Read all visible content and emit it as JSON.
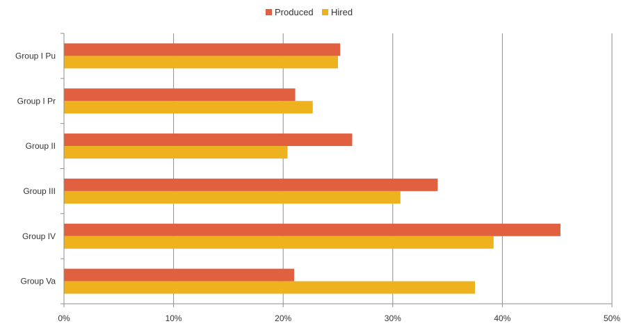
{
  "chart_data": {
    "type": "bar",
    "orientation": "horizontal",
    "categories": [
      "Group I Pu",
      "Group I Pr",
      "Group II",
      "Group III",
      "Group IV",
      "Group Va"
    ],
    "series": [
      {
        "name": "Produced",
        "color": "#E06040",
        "values": [
          25.2,
          21.1,
          26.3,
          34.1,
          45.3,
          21.0
        ]
      },
      {
        "name": "Hired",
        "color": "#EEB21E",
        "values": [
          25.0,
          22.7,
          20.4,
          30.7,
          39.2,
          37.5
        ]
      }
    ],
    "x_ticks": [
      "0%",
      "10%",
      "20%",
      "30%",
      "40%",
      "50%"
    ],
    "xlim": [
      0,
      50
    ],
    "grid": "vertical",
    "legend_position": "top-center",
    "title": "",
    "xlabel": "",
    "ylabel": ""
  }
}
